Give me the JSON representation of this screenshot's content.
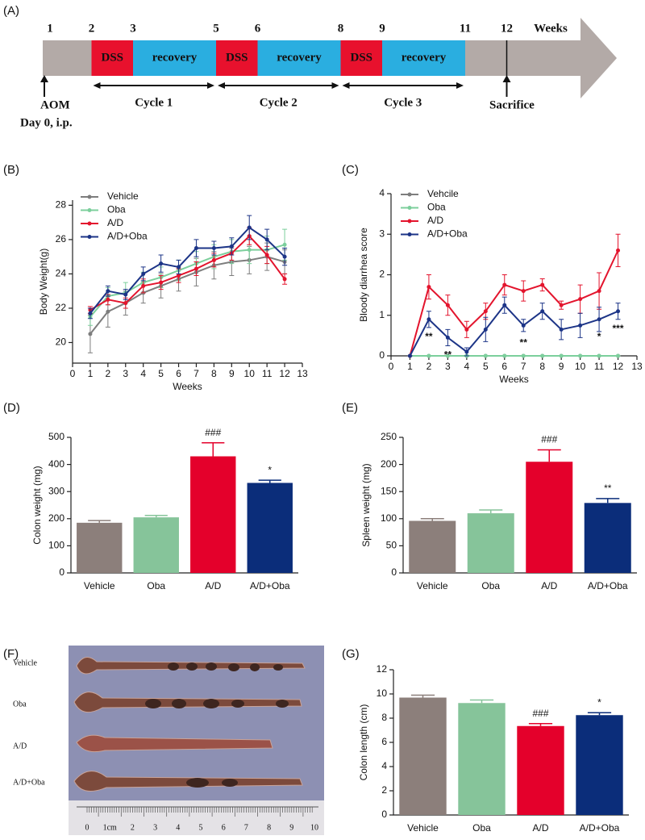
{
  "timeline": {
    "panel": "(A)",
    "weeks": [
      1,
      2,
      3,
      5,
      6,
      8,
      9,
      11,
      12
    ],
    "unit": "Weeks",
    "phases": [
      "DSS",
      "recovery",
      "DSS",
      "recovery",
      "DSS",
      "recovery"
    ],
    "cycles": [
      "Cycle 1",
      "Cycle 2",
      "Cycle 3"
    ],
    "start": [
      "AOM",
      "Day 0,  i.p."
    ],
    "end": "Sacrifice"
  },
  "chart_data": [
    {
      "type": "line",
      "panel": "(B)",
      "x_label": "Weeks",
      "y_label": "Body Weight(g)",
      "x": [
        1,
        2,
        3,
        4,
        5,
        6,
        7,
        8,
        9,
        10,
        11,
        12
      ],
      "xlim": [
        0,
        13
      ],
      "xticks": [
        0,
        1,
        2,
        3,
        4,
        5,
        6,
        7,
        8,
        9,
        10,
        11,
        12,
        13
      ],
      "ylim": [
        18.8,
        28.3
      ],
      "yticks": [
        20,
        22,
        24,
        26,
        28
      ],
      "series": [
        {
          "name": "Vehicle",
          "color": "#7d7d7d",
          "values": [
            20.5,
            21.8,
            22.3,
            22.9,
            23.3,
            23.7,
            24.1,
            24.5,
            24.7,
            24.8,
            25.0,
            24.7
          ],
          "errors": [
            1.1,
            0.9,
            0.7,
            0.6,
            0.7,
            0.7,
            0.8,
            0.8,
            0.8,
            0.8,
            0.8,
            0.7
          ]
        },
        {
          "name": "Oba",
          "color": "#7ccf9c",
          "values": [
            21.5,
            22.7,
            22.9,
            23.5,
            23.8,
            24.2,
            24.6,
            25.0,
            25.3,
            25.4,
            25.4,
            25.7
          ],
          "errors": [
            0.5,
            0.5,
            0.6,
            0.6,
            0.6,
            0.6,
            0.7,
            0.7,
            0.7,
            0.8,
            0.8,
            0.9
          ]
        },
        {
          "name": "A/D",
          "color": "#e3142d",
          "values": [
            21.9,
            22.5,
            22.3,
            23.3,
            23.5,
            23.9,
            24.3,
            24.8,
            25.2,
            26.2,
            25.1,
            23.7
          ],
          "errors": [
            0.2,
            0.3,
            0.3,
            0.4,
            0.4,
            0.4,
            0.4,
            0.4,
            0.4,
            0.5,
            0.5,
            0.3
          ]
        },
        {
          "name": "A/D+Oba",
          "color": "#1c3487",
          "values": [
            21.7,
            23.0,
            22.8,
            24.0,
            24.6,
            24.4,
            25.5,
            25.5,
            25.6,
            26.7,
            26.0,
            25.0
          ],
          "errors": [
            0.3,
            0.3,
            0.3,
            0.4,
            0.5,
            0.4,
            0.5,
            0.4,
            0.5,
            0.7,
            0.6,
            0.5
          ]
        }
      ]
    },
    {
      "type": "line",
      "panel": "(C)",
      "x_label": "Weeks",
      "y_label": "Bloody diarrhea score",
      "x": [
        1,
        2,
        3,
        4,
        5,
        6,
        7,
        8,
        9,
        10,
        11,
        12
      ],
      "xlim": [
        0,
        13
      ],
      "xticks": [
        0,
        1,
        2,
        3,
        4,
        5,
        6,
        7,
        8,
        9,
        10,
        11,
        12,
        13
      ],
      "ylim": [
        0,
        4
      ],
      "yticks": [
        0,
        1,
        2,
        3,
        4
      ],
      "series": [
        {
          "name": "Vehcile",
          "color": "#7d7d7d",
          "values": [
            0,
            0,
            0,
            0,
            0,
            0,
            0,
            0,
            0,
            0,
            0,
            0
          ],
          "errors": [
            0,
            0,
            0,
            0,
            0,
            0,
            0,
            0,
            0,
            0,
            0,
            0
          ]
        },
        {
          "name": "Oba",
          "color": "#7ccf9c",
          "values": [
            0,
            0,
            0,
            0,
            0,
            0,
            0,
            0,
            0,
            0,
            0,
            0
          ],
          "errors": [
            0,
            0,
            0,
            0,
            0,
            0,
            0,
            0,
            0,
            0,
            0,
            0
          ]
        },
        {
          "name": "A/D",
          "color": "#e3142d",
          "values": [
            0,
            1.7,
            1.25,
            0.65,
            1.1,
            1.75,
            1.6,
            1.75,
            1.25,
            1.4,
            1.6,
            2.6
          ],
          "errors": [
            0,
            0.3,
            0.25,
            0.2,
            0.2,
            0.25,
            0.25,
            0.15,
            0.1,
            0.35,
            0.45,
            0.4
          ]
        },
        {
          "name": "A/D+Oba",
          "color": "#1c3487",
          "values": [
            0,
            0.9,
            0.45,
            0.1,
            0.65,
            1.25,
            0.75,
            1.1,
            0.65,
            0.75,
            0.9,
            1.1
          ],
          "errors": [
            0,
            0.2,
            0.2,
            0.1,
            0.3,
            0.2,
            0.15,
            0.2,
            0.25,
            0.3,
            0.3,
            0.2
          ]
        }
      ],
      "annotations": [
        {
          "x": 2,
          "text": "**"
        },
        {
          "x": 3,
          "text": "**"
        },
        {
          "x": 7,
          "text": "**"
        },
        {
          "x": 11,
          "text": "*"
        },
        {
          "x": 12,
          "text": "***"
        }
      ]
    },
    {
      "type": "bar",
      "panel": "(D)",
      "y_label": "Colon weight (mg)",
      "categories": [
        "Vehicle",
        "Oba",
        "A/D",
        "A/D+Oba"
      ],
      "values": [
        185,
        205,
        430,
        332
      ],
      "errors": [
        8,
        7,
        50,
        10
      ],
      "colors": [
        "#8c7f7b",
        "#86c49a",
        "#e4002b",
        "#0b2d7a"
      ],
      "annotations": [
        null,
        null,
        "###",
        "*"
      ],
      "ylim": [
        0,
        500
      ],
      "yticks": [
        0,
        100,
        200,
        300,
        400,
        500
      ]
    },
    {
      "type": "bar",
      "panel": "(E)",
      "y_label": "Spleen weight (mg)",
      "categories": [
        "Vehicle",
        "Oba",
        "A/D",
        "A/D+Oba"
      ],
      "values": [
        96,
        110,
        205,
        129
      ],
      "errors": [
        4,
        6,
        22,
        8
      ],
      "colors": [
        "#8c7f7b",
        "#86c49a",
        "#e4002b",
        "#0b2d7a"
      ],
      "annotations": [
        null,
        null,
        "###",
        "**"
      ],
      "ylim": [
        0,
        250
      ],
      "yticks": [
        0,
        50,
        100,
        150,
        200,
        250
      ]
    },
    {
      "type": "bar",
      "panel": "(G)",
      "y_label": "Colon length (cm)",
      "categories": [
        "Vehicle",
        "Oba",
        "A/D",
        "A/D+Oba"
      ],
      "values": [
        9.7,
        9.25,
        7.35,
        8.25
      ],
      "errors": [
        0.2,
        0.25,
        0.2,
        0.2
      ],
      "colors": [
        "#8c7f7b",
        "#86c49a",
        "#e4002b",
        "#0b2d7a"
      ],
      "annotations": [
        null,
        null,
        "###",
        "*"
      ],
      "ylim": [
        0,
        12
      ],
      "yticks": [
        0,
        2,
        4,
        6,
        8,
        10,
        12
      ]
    }
  ],
  "photo": {
    "panel": "(F)",
    "rows": [
      "Vehicle",
      "Oba",
      "A/D",
      "A/D+Oba"
    ],
    "ruler": [
      "0",
      "1cm",
      "2",
      "3",
      "4",
      "5",
      "6",
      "7",
      "8",
      "9",
      "10"
    ]
  }
}
